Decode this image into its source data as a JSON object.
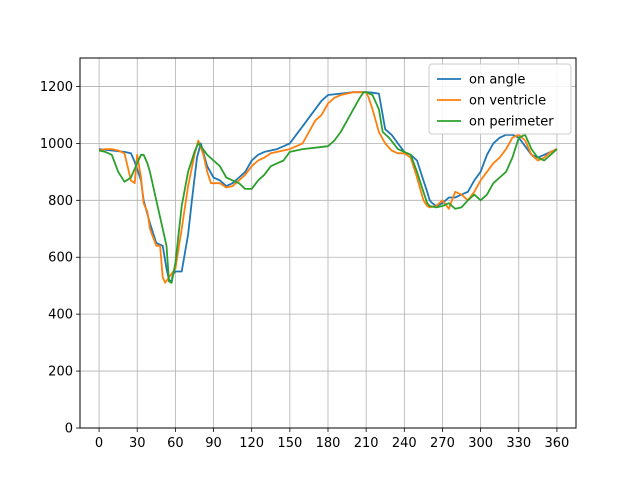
{
  "chart_data": {
    "type": "line",
    "title": "",
    "xlabel": "",
    "ylabel": "",
    "xlim": [
      -15,
      375
    ],
    "ylim": [
      0,
      1300
    ],
    "xticks": [
      0,
      30,
      60,
      90,
      120,
      150,
      180,
      210,
      240,
      270,
      300,
      330,
      360
    ],
    "yticks": [
      0,
      200,
      400,
      600,
      800,
      1000,
      1200
    ],
    "grid": true,
    "legend_position": "top-right",
    "series": [
      {
        "name": "on angle",
        "color": "#1f77b4",
        "points": [
          [
            0,
            980
          ],
          [
            10,
            975
          ],
          [
            20,
            970
          ],
          [
            25,
            965
          ],
          [
            28,
            935
          ],
          [
            30,
            910
          ],
          [
            33,
            870
          ],
          [
            35,
            800
          ],
          [
            40,
            720
          ],
          [
            45,
            650
          ],
          [
            50,
            640
          ],
          [
            53,
            560
          ],
          [
            55,
            520
          ],
          [
            57,
            515
          ],
          [
            58,
            540
          ],
          [
            60,
            550
          ],
          [
            65,
            550
          ],
          [
            70,
            680
          ],
          [
            73,
            800
          ],
          [
            77,
            950
          ],
          [
            80,
            1000
          ],
          [
            85,
            920
          ],
          [
            90,
            880
          ],
          [
            95,
            870
          ],
          [
            100,
            850
          ],
          [
            105,
            860
          ],
          [
            110,
            880
          ],
          [
            115,
            900
          ],
          [
            120,
            940
          ],
          [
            125,
            960
          ],
          [
            130,
            970
          ],
          [
            140,
            980
          ],
          [
            150,
            1000
          ],
          [
            155,
            1030
          ],
          [
            160,
            1060
          ],
          [
            165,
            1090
          ],
          [
            170,
            1120
          ],
          [
            175,
            1150
          ],
          [
            180,
            1170
          ],
          [
            190,
            1175
          ],
          [
            200,
            1180
          ],
          [
            210,
            1180
          ],
          [
            215,
            1178
          ],
          [
            220,
            1175
          ],
          [
            225,
            1050
          ],
          [
            230,
            1030
          ],
          [
            235,
            1000
          ],
          [
            240,
            970
          ],
          [
            245,
            960
          ],
          [
            250,
            940
          ],
          [
            255,
            870
          ],
          [
            258,
            830
          ],
          [
            260,
            800
          ],
          [
            262,
            790
          ],
          [
            265,
            780
          ],
          [
            270,
            790
          ],
          [
            275,
            810
          ],
          [
            280,
            810
          ],
          [
            285,
            820
          ],
          [
            290,
            830
          ],
          [
            295,
            870
          ],
          [
            300,
            900
          ],
          [
            305,
            960
          ],
          [
            310,
            1000
          ],
          [
            315,
            1020
          ],
          [
            320,
            1030
          ],
          [
            325,
            1030
          ],
          [
            330,
            1020
          ],
          [
            335,
            990
          ],
          [
            340,
            960
          ],
          [
            345,
            950
          ],
          [
            350,
            960
          ],
          [
            355,
            970
          ],
          [
            360,
            980
          ]
        ]
      },
      {
        "name": "on ventricle",
        "color": "#ff7f0e",
        "points": [
          [
            0,
            975
          ],
          [
            5,
            980
          ],
          [
            10,
            980
          ],
          [
            15,
            975
          ],
          [
            20,
            965
          ],
          [
            25,
            870
          ],
          [
            28,
            860
          ],
          [
            30,
            960
          ],
          [
            33,
            880
          ],
          [
            35,
            790
          ],
          [
            38,
            760
          ],
          [
            40,
            700
          ],
          [
            45,
            640
          ],
          [
            48,
            640
          ],
          [
            50,
            530
          ],
          [
            52,
            510
          ],
          [
            55,
            530
          ],
          [
            60,
            560
          ],
          [
            65,
            700
          ],
          [
            70,
            850
          ],
          [
            75,
            960
          ],
          [
            78,
            1010
          ],
          [
            82,
            960
          ],
          [
            85,
            900
          ],
          [
            88,
            860
          ],
          [
            90,
            860
          ],
          [
            95,
            860
          ],
          [
            100,
            845
          ],
          [
            105,
            850
          ],
          [
            110,
            870
          ],
          [
            115,
            890
          ],
          [
            120,
            920
          ],
          [
            125,
            940
          ],
          [
            130,
            950
          ],
          [
            135,
            965
          ],
          [
            140,
            970
          ],
          [
            150,
            980
          ],
          [
            160,
            1000
          ],
          [
            165,
            1040
          ],
          [
            170,
            1080
          ],
          [
            175,
            1100
          ],
          [
            180,
            1140
          ],
          [
            185,
            1160
          ],
          [
            190,
            1170
          ],
          [
            200,
            1180
          ],
          [
            210,
            1180
          ],
          [
            212,
            1160
          ],
          [
            215,
            1120
          ],
          [
            220,
            1040
          ],
          [
            225,
            1000
          ],
          [
            230,
            975
          ],
          [
            235,
            965
          ],
          [
            240,
            965
          ],
          [
            245,
            950
          ],
          [
            250,
            880
          ],
          [
            255,
            800
          ],
          [
            258,
            780
          ],
          [
            260,
            775
          ],
          [
            265,
            780
          ],
          [
            270,
            800
          ],
          [
            275,
            770
          ],
          [
            280,
            830
          ],
          [
            285,
            820
          ],
          [
            290,
            800
          ],
          [
            295,
            830
          ],
          [
            300,
            870
          ],
          [
            305,
            900
          ],
          [
            310,
            930
          ],
          [
            315,
            950
          ],
          [
            320,
            980
          ],
          [
            325,
            1020
          ],
          [
            330,
            1030
          ],
          [
            335,
            1010
          ],
          [
            340,
            960
          ],
          [
            345,
            940
          ],
          [
            350,
            950
          ],
          [
            355,
            970
          ],
          [
            360,
            980
          ]
        ]
      },
      {
        "name": "on perimeter",
        "color": "#2ca02c",
        "points": [
          [
            0,
            975
          ],
          [
            5,
            970
          ],
          [
            10,
            960
          ],
          [
            15,
            900
          ],
          [
            20,
            865
          ],
          [
            25,
            880
          ],
          [
            30,
            930
          ],
          [
            33,
            960
          ],
          [
            35,
            960
          ],
          [
            38,
            930
          ],
          [
            40,
            900
          ],
          [
            45,
            800
          ],
          [
            50,
            700
          ],
          [
            53,
            640
          ],
          [
            55,
            515
          ],
          [
            57,
            510
          ],
          [
            60,
            580
          ],
          [
            65,
            780
          ],
          [
            70,
            900
          ],
          [
            75,
            970
          ],
          [
            78,
            1000
          ],
          [
            80,
            990
          ],
          [
            85,
            960
          ],
          [
            90,
            940
          ],
          [
            95,
            920
          ],
          [
            100,
            880
          ],
          [
            105,
            870
          ],
          [
            110,
            860
          ],
          [
            115,
            840
          ],
          [
            120,
            840
          ],
          [
            125,
            870
          ],
          [
            130,
            890
          ],
          [
            135,
            920
          ],
          [
            140,
            930
          ],
          [
            145,
            940
          ],
          [
            150,
            970
          ],
          [
            160,
            980
          ],
          [
            170,
            985
          ],
          [
            180,
            990
          ],
          [
            185,
            1010
          ],
          [
            190,
            1040
          ],
          [
            195,
            1080
          ],
          [
            200,
            1120
          ],
          [
            205,
            1160
          ],
          [
            208,
            1180
          ],
          [
            210,
            1180
          ],
          [
            215,
            1170
          ],
          [
            220,
            1120
          ],
          [
            223,
            1040
          ],
          [
            228,
            1020
          ],
          [
            235,
            980
          ],
          [
            240,
            970
          ],
          [
            245,
            960
          ],
          [
            250,
            900
          ],
          [
            255,
            830
          ],
          [
            258,
            790
          ],
          [
            260,
            780
          ],
          [
            265,
            775
          ],
          [
            270,
            780
          ],
          [
            275,
            790
          ],
          [
            280,
            770
          ],
          [
            285,
            775
          ],
          [
            290,
            800
          ],
          [
            295,
            820
          ],
          [
            300,
            800
          ],
          [
            305,
            820
          ],
          [
            310,
            860
          ],
          [
            315,
            880
          ],
          [
            320,
            900
          ],
          [
            325,
            950
          ],
          [
            330,
            1020
          ],
          [
            335,
            1030
          ],
          [
            340,
            980
          ],
          [
            345,
            950
          ],
          [
            350,
            940
          ],
          [
            355,
            960
          ],
          [
            360,
            980
          ]
        ]
      }
    ]
  }
}
